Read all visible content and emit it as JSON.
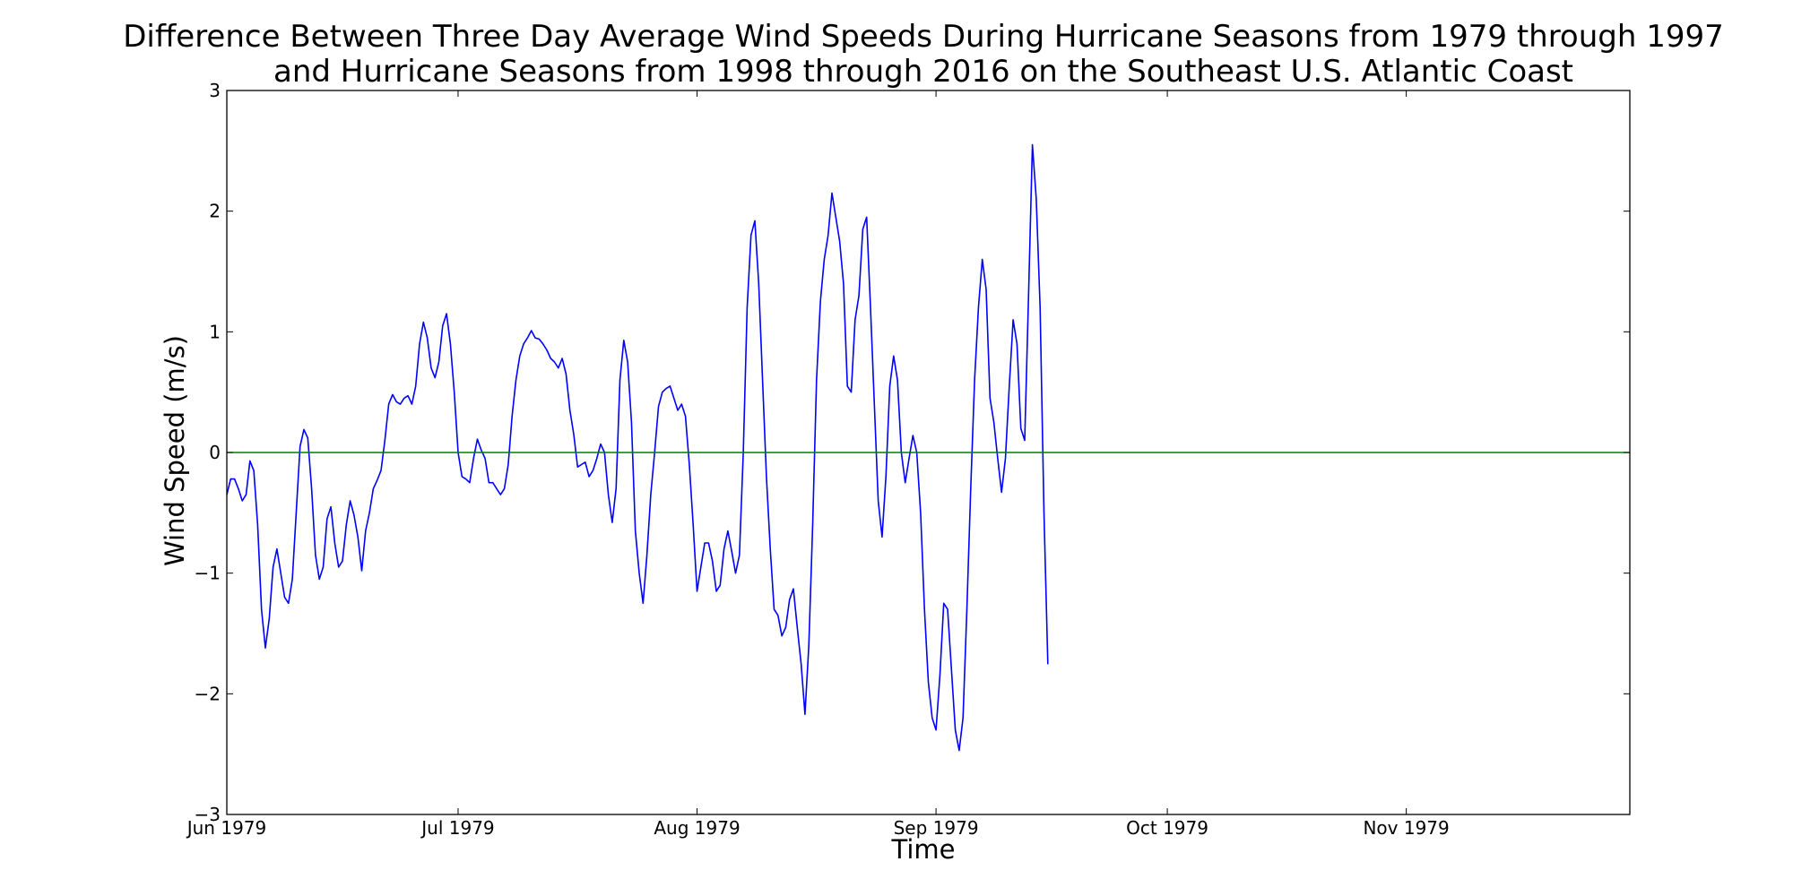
{
  "chart_data": {
    "type": "line",
    "title_lines": [
      "Difference Between Three Day Average Wind Speeds During Hurricane Seasons from 1979 through 1997",
      "and Hurricane Seasons from 1998 through 2016 on the Southeast U.S. Atlantic Coast"
    ],
    "xlabel": "Time",
    "ylabel": "Wind Speed (m/s)",
    "xlim": [
      "1979-06-01",
      "1979-11-30"
    ],
    "ylim": [
      -3,
      3
    ],
    "xticks": [
      {
        "date": "1979-06-01",
        "label": "Jun 1979"
      },
      {
        "date": "1979-07-01",
        "label": "Jul 1979"
      },
      {
        "date": "1979-08-01",
        "label": "Aug 1979"
      },
      {
        "date": "1979-09-01",
        "label": "Sep 1979"
      },
      {
        "date": "1979-10-01",
        "label": "Oct 1979"
      },
      {
        "date": "1979-11-01",
        "label": "Nov 1979"
      }
    ],
    "yticks": [
      {
        "value": 3,
        "label": "3"
      },
      {
        "value": 2,
        "label": "2"
      },
      {
        "value": 1,
        "label": "1"
      },
      {
        "value": 0,
        "label": "0"
      },
      {
        "value": -1,
        "label": "−1"
      },
      {
        "value": -2,
        "label": "−2"
      },
      {
        "value": -3,
        "label": "−3"
      }
    ],
    "grid": false,
    "series": [
      {
        "color": "#0000ff",
        "points": [
          [
            "1979-06-01",
            -0.35
          ],
          [
            "1979-06-01T12:00",
            -0.22
          ],
          [
            "1979-06-02",
            -0.22
          ],
          [
            "1979-06-02T12:00",
            -0.3
          ],
          [
            "1979-06-03",
            -0.4
          ],
          [
            "1979-06-03T12:00",
            -0.35
          ],
          [
            "1979-06-04",
            -0.07
          ],
          [
            "1979-06-04T12:00",
            -0.15
          ],
          [
            "1979-06-05",
            -0.6
          ],
          [
            "1979-06-05T12:00",
            -1.3
          ],
          [
            "1979-06-06",
            -1.62
          ],
          [
            "1979-06-06T12:00",
            -1.38
          ],
          [
            "1979-06-07",
            -0.95
          ],
          [
            "1979-06-07T12:00",
            -0.8
          ],
          [
            "1979-06-08",
            -1.0
          ],
          [
            "1979-06-08T12:00",
            -1.2
          ],
          [
            "1979-06-09",
            -1.25
          ],
          [
            "1979-06-09T12:00",
            -1.05
          ],
          [
            "1979-06-10",
            -0.5
          ],
          [
            "1979-06-10T12:00",
            0.05
          ],
          [
            "1979-06-11",
            0.19
          ],
          [
            "1979-06-11T12:00",
            0.12
          ],
          [
            "1979-06-12",
            -0.3
          ],
          [
            "1979-06-12T12:00",
            -0.85
          ],
          [
            "1979-06-13",
            -1.05
          ],
          [
            "1979-06-13T12:00",
            -0.95
          ],
          [
            "1979-06-14",
            -0.55
          ],
          [
            "1979-06-14T12:00",
            -0.45
          ],
          [
            "1979-06-15",
            -0.75
          ],
          [
            "1979-06-15T12:00",
            -0.95
          ],
          [
            "1979-06-16",
            -0.9
          ],
          [
            "1979-06-16T12:00",
            -0.6
          ],
          [
            "1979-06-17",
            -0.4
          ],
          [
            "1979-06-17T12:00",
            -0.52
          ],
          [
            "1979-06-18",
            -0.7
          ],
          [
            "1979-06-18T12:00",
            -0.98
          ],
          [
            "1979-06-19",
            -0.65
          ],
          [
            "1979-06-19T12:00",
            -0.5
          ],
          [
            "1979-06-20",
            -0.3
          ],
          [
            "1979-06-20T12:00",
            -0.23
          ],
          [
            "1979-06-21",
            -0.15
          ],
          [
            "1979-06-21T12:00",
            0.1
          ],
          [
            "1979-06-22",
            0.4
          ],
          [
            "1979-06-22T12:00",
            0.48
          ],
          [
            "1979-06-23",
            0.42
          ],
          [
            "1979-06-23T12:00",
            0.4
          ],
          [
            "1979-06-24",
            0.45
          ],
          [
            "1979-06-24T12:00",
            0.47
          ],
          [
            "1979-06-25",
            0.4
          ],
          [
            "1979-06-25T12:00",
            0.55
          ],
          [
            "1979-06-26",
            0.9
          ],
          [
            "1979-06-26T12:00",
            1.08
          ],
          [
            "1979-06-27",
            0.95
          ],
          [
            "1979-06-27T12:00",
            0.7
          ],
          [
            "1979-06-28",
            0.62
          ],
          [
            "1979-06-28T12:00",
            0.75
          ],
          [
            "1979-06-29",
            1.05
          ],
          [
            "1979-06-29T12:00",
            1.15
          ],
          [
            "1979-06-30",
            0.9
          ],
          [
            "1979-06-30T12:00",
            0.5
          ],
          [
            "1979-07-01",
            0.0
          ],
          [
            "1979-07-01T12:00",
            -0.2
          ],
          [
            "1979-07-02",
            -0.22
          ],
          [
            "1979-07-02T12:00",
            -0.25
          ],
          [
            "1979-07-03",
            -0.05
          ],
          [
            "1979-07-03T12:00",
            0.11
          ],
          [
            "1979-07-04",
            0.02
          ],
          [
            "1979-07-04T12:00",
            -0.05
          ],
          [
            "1979-07-05",
            -0.25
          ],
          [
            "1979-07-05T12:00",
            -0.25
          ],
          [
            "1979-07-06",
            -0.3
          ],
          [
            "1979-07-06T12:00",
            -0.35
          ],
          [
            "1979-07-07",
            -0.3
          ],
          [
            "1979-07-07T12:00",
            -0.1
          ],
          [
            "1979-07-08",
            0.3
          ],
          [
            "1979-07-08T12:00",
            0.6
          ],
          [
            "1979-07-09",
            0.8
          ],
          [
            "1979-07-09T12:00",
            0.9
          ],
          [
            "1979-07-10",
            0.95
          ],
          [
            "1979-07-10T12:00",
            1.01
          ],
          [
            "1979-07-11",
            0.95
          ],
          [
            "1979-07-11T12:00",
            0.94
          ],
          [
            "1979-07-12",
            0.9
          ],
          [
            "1979-07-12T12:00",
            0.85
          ],
          [
            "1979-07-13",
            0.78
          ],
          [
            "1979-07-13T12:00",
            0.75
          ],
          [
            "1979-07-14",
            0.7
          ],
          [
            "1979-07-14T12:00",
            0.78
          ],
          [
            "1979-07-15",
            0.65
          ],
          [
            "1979-07-15T12:00",
            0.35
          ],
          [
            "1979-07-16",
            0.15
          ],
          [
            "1979-07-16T12:00",
            -0.12
          ],
          [
            "1979-07-17",
            -0.1
          ],
          [
            "1979-07-17T12:00",
            -0.08
          ],
          [
            "1979-07-18",
            -0.2
          ],
          [
            "1979-07-18T12:00",
            -0.15
          ],
          [
            "1979-07-19",
            -0.05
          ],
          [
            "1979-07-19T12:00",
            0.07
          ],
          [
            "1979-07-20",
            0.0
          ],
          [
            "1979-07-20T12:00",
            -0.35
          ],
          [
            "1979-07-21",
            -0.58
          ],
          [
            "1979-07-21T12:00",
            -0.3
          ],
          [
            "1979-07-22",
            0.6
          ],
          [
            "1979-07-22T12:00",
            0.93
          ],
          [
            "1979-07-23",
            0.75
          ],
          [
            "1979-07-23T12:00",
            0.25
          ],
          [
            "1979-07-24",
            -0.65
          ],
          [
            "1979-07-24T12:00",
            -1.0
          ],
          [
            "1979-07-25",
            -1.25
          ],
          [
            "1979-07-25T12:00",
            -0.85
          ],
          [
            "1979-07-26",
            -0.35
          ],
          [
            "1979-07-26T12:00",
            0.0
          ],
          [
            "1979-07-27",
            0.38
          ],
          [
            "1979-07-27T12:00",
            0.5
          ],
          [
            "1979-07-28",
            0.53
          ],
          [
            "1979-07-28T12:00",
            0.55
          ],
          [
            "1979-07-29",
            0.45
          ],
          [
            "1979-07-29T12:00",
            0.35
          ],
          [
            "1979-07-30",
            0.4
          ],
          [
            "1979-07-30T12:00",
            0.3
          ],
          [
            "1979-07-31",
            -0.1
          ],
          [
            "1979-07-31T12:00",
            -0.6
          ],
          [
            "1979-08-01",
            -1.15
          ],
          [
            "1979-08-01T12:00",
            -0.95
          ],
          [
            "1979-08-02",
            -0.75
          ],
          [
            "1979-08-02T12:00",
            -0.75
          ],
          [
            "1979-08-03",
            -0.9
          ],
          [
            "1979-08-03T12:00",
            -1.15
          ],
          [
            "1979-08-04",
            -1.1
          ],
          [
            "1979-08-04T12:00",
            -0.8
          ],
          [
            "1979-08-05",
            -0.65
          ],
          [
            "1979-08-05T12:00",
            -0.82
          ],
          [
            "1979-08-06",
            -1.0
          ],
          [
            "1979-08-06T12:00",
            -0.85
          ],
          [
            "1979-08-07",
            0.0
          ],
          [
            "1979-08-07T12:00",
            1.2
          ],
          [
            "1979-08-08",
            1.8
          ],
          [
            "1979-08-08T12:00",
            1.92
          ],
          [
            "1979-08-09",
            1.4
          ],
          [
            "1979-08-09T12:00",
            0.6
          ],
          [
            "1979-08-10",
            -0.2
          ],
          [
            "1979-08-10T12:00",
            -0.8
          ],
          [
            "1979-08-11",
            -1.3
          ],
          [
            "1979-08-11T12:00",
            -1.35
          ],
          [
            "1979-08-12",
            -1.52
          ],
          [
            "1979-08-12T12:00",
            -1.45
          ],
          [
            "1979-08-13",
            -1.22
          ],
          [
            "1979-08-13T12:00",
            -1.13
          ],
          [
            "1979-08-14",
            -1.45
          ],
          [
            "1979-08-14T12:00",
            -1.75
          ],
          [
            "1979-08-15",
            -2.17
          ],
          [
            "1979-08-15T12:00",
            -1.6
          ],
          [
            "1979-08-16",
            -0.6
          ],
          [
            "1979-08-16T12:00",
            0.6
          ],
          [
            "1979-08-17",
            1.25
          ],
          [
            "1979-08-17T12:00",
            1.6
          ],
          [
            "1979-08-18",
            1.8
          ],
          [
            "1979-08-18T12:00",
            2.15
          ],
          [
            "1979-08-19",
            1.95
          ],
          [
            "1979-08-19T12:00",
            1.75
          ],
          [
            "1979-08-20",
            1.4
          ],
          [
            "1979-08-20T12:00",
            0.55
          ],
          [
            "1979-08-21",
            0.5
          ],
          [
            "1979-08-21T12:00",
            1.1
          ],
          [
            "1979-08-22",
            1.3
          ],
          [
            "1979-08-22T12:00",
            1.85
          ],
          [
            "1979-08-23",
            1.95
          ],
          [
            "1979-08-23T12:00",
            1.2
          ],
          [
            "1979-08-24",
            0.4
          ],
          [
            "1979-08-24T12:00",
            -0.4
          ],
          [
            "1979-08-25",
            -0.7
          ],
          [
            "1979-08-25T12:00",
            -0.2
          ],
          [
            "1979-08-26",
            0.55
          ],
          [
            "1979-08-26T12:00",
            0.8
          ],
          [
            "1979-08-27",
            0.6
          ],
          [
            "1979-08-27T12:00",
            0.0
          ],
          [
            "1979-08-28",
            -0.25
          ],
          [
            "1979-08-28T12:00",
            -0.05
          ],
          [
            "1979-08-29",
            0.14
          ],
          [
            "1979-08-29T12:00",
            0.0
          ],
          [
            "1979-08-30",
            -0.5
          ],
          [
            "1979-08-30T12:00",
            -1.3
          ],
          [
            "1979-08-31",
            -1.9
          ],
          [
            "1979-08-31T12:00",
            -2.2
          ],
          [
            "1979-09-01",
            -2.3
          ],
          [
            "1979-09-01T12:00",
            -1.85
          ],
          [
            "1979-09-02",
            -1.25
          ],
          [
            "1979-09-02T12:00",
            -1.3
          ],
          [
            "1979-09-03",
            -1.8
          ],
          [
            "1979-09-03T12:00",
            -2.3
          ],
          [
            "1979-09-04",
            -2.47
          ],
          [
            "1979-09-04T12:00",
            -2.2
          ],
          [
            "1979-09-05",
            -1.3
          ],
          [
            "1979-09-05T12:00",
            -0.3
          ],
          [
            "1979-09-06",
            0.6
          ],
          [
            "1979-09-06T12:00",
            1.2
          ],
          [
            "1979-09-07",
            1.6
          ],
          [
            "1979-09-07T12:00",
            1.35
          ],
          [
            "1979-09-08",
            0.45
          ],
          [
            "1979-09-08T12:00",
            0.25
          ],
          [
            "1979-09-09",
            -0.05
          ],
          [
            "1979-09-09T12:00",
            -0.33
          ],
          [
            "1979-09-10",
            -0.05
          ],
          [
            "1979-09-10T12:00",
            0.55
          ],
          [
            "1979-09-11",
            1.1
          ],
          [
            "1979-09-11T12:00",
            0.9
          ],
          [
            "1979-09-12",
            0.2
          ],
          [
            "1979-09-12T12:00",
            0.1
          ],
          [
            "1979-09-13",
            1.3
          ],
          [
            "1979-09-13T12:00",
            2.55
          ],
          [
            "1979-09-14",
            2.1
          ],
          [
            "1979-09-14T12:00",
            1.2
          ],
          [
            "1979-09-15",
            -0.5
          ],
          [
            "1979-09-15T12:00",
            -1.75
          ]
        ]
      },
      {
        "color": "#008000",
        "points": [
          [
            "1979-06-01",
            0
          ],
          [
            "1979-11-30",
            0
          ]
        ]
      }
    ]
  }
}
